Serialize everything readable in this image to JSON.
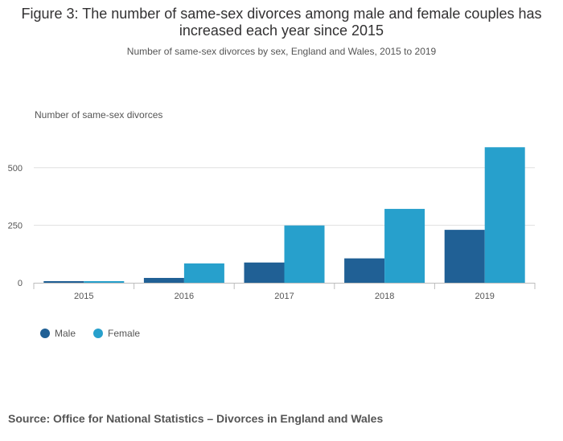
{
  "title": "Figure 3: The number of same-sex divorces among male and female couples has increased each year since 2015",
  "subtitle": "Number of same-sex divorces by sex, England and Wales, 2015 to 2019",
  "source": "Source: Office for National Statistics – Divorces in England and Wales",
  "colors": {
    "male": "#206095",
    "female": "#27a0cc",
    "grid": "#e0e0e0",
    "axis": "#bdbdbd"
  },
  "chart_data": {
    "type": "bar",
    "title": "Figure 3: The number of same-sex divorces among male and female couples has increased each year since 2015",
    "subtitle": "Number of same-sex divorces by sex, England and Wales, 2015 to 2019",
    "xlabel": "",
    "ylabel": "Number of same-sex divorces",
    "categories": [
      "2015",
      "2016",
      "2017",
      "2018",
      "2019"
    ],
    "series": [
      {
        "name": "Male",
        "values": [
          7,
          21,
          88,
          106,
          230
        ]
      },
      {
        "name": "Female",
        "values": [
          7,
          84,
          249,
          321,
          589
        ]
      }
    ],
    "yticks": [
      0,
      250,
      500
    ],
    "ytick_labels": [
      "0",
      "250",
      "500"
    ],
    "ylim": [
      0,
      610
    ],
    "grid": true,
    "legend": "bottom-left"
  }
}
